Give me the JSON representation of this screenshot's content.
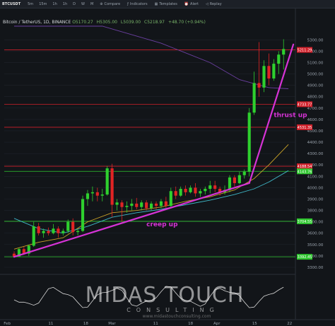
{
  "toolbar": {
    "symbol": "BTCUSDT",
    "intervals": [
      "5m",
      "15m",
      "1h",
      "1h",
      "D",
      "W",
      "M"
    ],
    "tools": [
      {
        "icon": "compare-icon",
        "label": "Compare"
      },
      {
        "icon": "indicators-icon",
        "label": "Indicators"
      },
      {
        "icon": "templates-icon",
        "label": "Templates"
      },
      {
        "icon": "alert-icon",
        "label": "Alert"
      },
      {
        "icon": "replay-icon",
        "label": "Replay"
      }
    ]
  },
  "legend": {
    "title": "Bitcoin / TetherUS, 1D, BINANCE",
    "o": "O5170.27",
    "h": "H5305.00",
    "l": "L5039.00",
    "c": "C5218.97",
    "chg": "+48.70 (+0.94%)"
  },
  "watermark": {
    "line1": "MIDAS TOUCH",
    "line2": "CONSULTING",
    "line3": "www.midastouchconsulting.com"
  },
  "colors": {
    "up": "#2ed02e",
    "down": "#e02424",
    "annotation": "#d633d6",
    "hline_red": "#d0202a",
    "hline_green": "#2fc62f"
  },
  "chart_data": {
    "type": "candlestick",
    "x_tick_labels": [
      "Feb",
      "11",
      "18",
      "Mar",
      "11",
      "18",
      "Apr",
      "15",
      "22"
    ],
    "ylim": [
      3300,
      5420
    ],
    "y_tick_labels": [
      "5300.00",
      "5200.00",
      "5100.00",
      "5000.00",
      "4900.00",
      "4800.00",
      "4700.00",
      "4600.00",
      "4500.00",
      "4400.00",
      "4300.00",
      "4200.00",
      "4100.00",
      "4000.00",
      "3900.00",
      "3800.00",
      "3700.00",
      "3600.00",
      "3500.00",
      "3400.00",
      "3300.00"
    ],
    "candles": [
      {
        "o": 3420,
        "h": 3440,
        "l": 3385,
        "c": 3395
      },
      {
        "o": 3395,
        "h": 3470,
        "l": 3390,
        "c": 3460
      },
      {
        "o": 3460,
        "h": 3480,
        "l": 3410,
        "c": 3420
      },
      {
        "o": 3420,
        "h": 3500,
        "l": 3400,
        "c": 3490
      },
      {
        "o": 3490,
        "h": 3700,
        "l": 3480,
        "c": 3660
      },
      {
        "o": 3660,
        "h": 3690,
        "l": 3580,
        "c": 3600
      },
      {
        "o": 3600,
        "h": 3640,
        "l": 3560,
        "c": 3620
      },
      {
        "o": 3620,
        "h": 3650,
        "l": 3580,
        "c": 3600
      },
      {
        "o": 3600,
        "h": 3680,
        "l": 3590,
        "c": 3640
      },
      {
        "o": 3640,
        "h": 3660,
        "l": 3560,
        "c": 3600
      },
      {
        "o": 3600,
        "h": 3640,
        "l": 3580,
        "c": 3620
      },
      {
        "o": 3620,
        "h": 3720,
        "l": 3600,
        "c": 3700
      },
      {
        "o": 3700,
        "h": 3730,
        "l": 3580,
        "c": 3610
      },
      {
        "o": 3610,
        "h": 3640,
        "l": 3580,
        "c": 3620
      },
      {
        "o": 3620,
        "h": 3930,
        "l": 3610,
        "c": 3900
      },
      {
        "o": 3900,
        "h": 3980,
        "l": 3840,
        "c": 3950
      },
      {
        "o": 3950,
        "h": 4010,
        "l": 3880,
        "c": 3960
      },
      {
        "o": 3960,
        "h": 4000,
        "l": 3880,
        "c": 3930
      },
      {
        "o": 3930,
        "h": 3990,
        "l": 3880,
        "c": 3940
      },
      {
        "o": 3940,
        "h": 4190,
        "l": 3930,
        "c": 4170
      },
      {
        "o": 4170,
        "h": 4210,
        "l": 3740,
        "c": 3850
      },
      {
        "o": 3850,
        "h": 3900,
        "l": 3800,
        "c": 3870
      },
      {
        "o": 3870,
        "h": 3890,
        "l": 3700,
        "c": 3830
      },
      {
        "o": 3830,
        "h": 3880,
        "l": 3780,
        "c": 3840
      },
      {
        "o": 3840,
        "h": 3900,
        "l": 3800,
        "c": 3860
      },
      {
        "o": 3860,
        "h": 3910,
        "l": 3810,
        "c": 3830
      },
      {
        "o": 3830,
        "h": 3890,
        "l": 3800,
        "c": 3870
      },
      {
        "o": 3870,
        "h": 3890,
        "l": 3800,
        "c": 3820
      },
      {
        "o": 3820,
        "h": 3880,
        "l": 3800,
        "c": 3860
      },
      {
        "o": 3860,
        "h": 3880,
        "l": 3810,
        "c": 3840
      },
      {
        "o": 3840,
        "h": 3900,
        "l": 3820,
        "c": 3880
      },
      {
        "o": 3880,
        "h": 3920,
        "l": 3820,
        "c": 3840
      },
      {
        "o": 3840,
        "h": 4000,
        "l": 3830,
        "c": 3970
      },
      {
        "o": 3970,
        "h": 4010,
        "l": 3900,
        "c": 3930
      },
      {
        "o": 3930,
        "h": 4010,
        "l": 3920,
        "c": 3990
      },
      {
        "o": 3990,
        "h": 4020,
        "l": 3930,
        "c": 3960
      },
      {
        "o": 3960,
        "h": 4020,
        "l": 3950,
        "c": 4000
      },
      {
        "o": 4000,
        "h": 4040,
        "l": 3920,
        "c": 3950
      },
      {
        "o": 3950,
        "h": 3990,
        "l": 3920,
        "c": 3970
      },
      {
        "o": 3970,
        "h": 4010,
        "l": 3940,
        "c": 3990
      },
      {
        "o": 3990,
        "h": 4060,
        "l": 3950,
        "c": 4020
      },
      {
        "o": 4020,
        "h": 4060,
        "l": 3960,
        "c": 3990
      },
      {
        "o": 3990,
        "h": 4010,
        "l": 3930,
        "c": 3960
      },
      {
        "o": 3960,
        "h": 4020,
        "l": 3940,
        "c": 3980
      },
      {
        "o": 3980,
        "h": 4110,
        "l": 3960,
        "c": 4090
      },
      {
        "o": 4090,
        "h": 4110,
        "l": 4010,
        "c": 4040
      },
      {
        "o": 4040,
        "h": 4140,
        "l": 4030,
        "c": 4110
      },
      {
        "o": 4110,
        "h": 4160,
        "l": 4080,
        "c": 4140
      },
      {
        "o": 4140,
        "h": 4700,
        "l": 4100,
        "c": 4660
      },
      {
        "o": 4660,
        "h": 5020,
        "l": 4640,
        "c": 4920
      },
      {
        "o": 4920,
        "h": 5280,
        "l": 4800,
        "c": 4880
      },
      {
        "o": 4880,
        "h": 5120,
        "l": 4840,
        "c": 5070
      },
      {
        "o": 5070,
        "h": 5180,
        "l": 4900,
        "c": 4960
      },
      {
        "o": 4960,
        "h": 5130,
        "l": 4940,
        "c": 5090
      },
      {
        "o": 5090,
        "h": 5200,
        "l": 5000,
        "c": 5170
      },
      {
        "o": 5170,
        "h": 5305,
        "l": 5039,
        "c": 5218.97
      }
    ],
    "price_levels": [
      {
        "label": "5211.29",
        "value": 5211.29,
        "color": "#d0202a"
      },
      {
        "label": "4733.77",
        "value": 4733.77,
        "color": "#d0202a"
      },
      {
        "label": "4531.35",
        "value": 4531.35,
        "color": "#d0202a"
      },
      {
        "label": "4188.54",
        "value": 4188.54,
        "color": "#d0202a"
      },
      {
        "label": "4143.76",
        "value": 4143.76,
        "color": "#2fc62f"
      },
      {
        "label": "3704.55",
        "value": 3704.55,
        "color": "#2fc62f"
      },
      {
        "label": "3392.45",
        "value": 3392.45,
        "color": "#2fc62f"
      }
    ],
    "moving_averages": [
      {
        "color": "#6b3fa0",
        "values": [
          [
            0,
            5420
          ],
          [
            18,
            5420
          ],
          [
            30,
            5270
          ],
          [
            40,
            5100
          ],
          [
            46,
            4950
          ],
          [
            52,
            4880
          ],
          [
            56,
            4870
          ]
        ]
      },
      {
        "color": "#c9a227",
        "values": [
          [
            0,
            3460
          ],
          [
            5,
            3520
          ],
          [
            10,
            3560
          ],
          [
            15,
            3700
          ],
          [
            20,
            3780
          ],
          [
            25,
            3800
          ],
          [
            30,
            3830
          ],
          [
            35,
            3880
          ],
          [
            40,
            3920
          ],
          [
            45,
            3980
          ],
          [
            49,
            4080
          ],
          [
            52,
            4200
          ],
          [
            56,
            4380
          ]
        ]
      },
      {
        "color": "#3fb8c8",
        "values": [
          [
            0,
            3730
          ],
          [
            5,
            3640
          ],
          [
            10,
            3600
          ],
          [
            15,
            3660
          ],
          [
            20,
            3740
          ],
          [
            25,
            3780
          ],
          [
            30,
            3810
          ],
          [
            35,
            3850
          ],
          [
            40,
            3890
          ],
          [
            45,
            3940
          ],
          [
            49,
            3990
          ],
          [
            52,
            4050
          ],
          [
            56,
            4150
          ]
        ]
      }
    ],
    "trendlines": [
      {
        "label": "creep up",
        "from": [
          0,
          3392
        ],
        "to": [
          48,
          4040
        ]
      },
      {
        "label": "thrust up",
        "from": [
          48,
          4040
        ],
        "to": [
          57,
          5260
        ]
      }
    ],
    "annotations": [
      {
        "text": "creep up",
        "at": [
          27,
          3660
        ]
      },
      {
        "text": "thrust up",
        "at": [
          53,
          4620
        ]
      }
    ]
  }
}
